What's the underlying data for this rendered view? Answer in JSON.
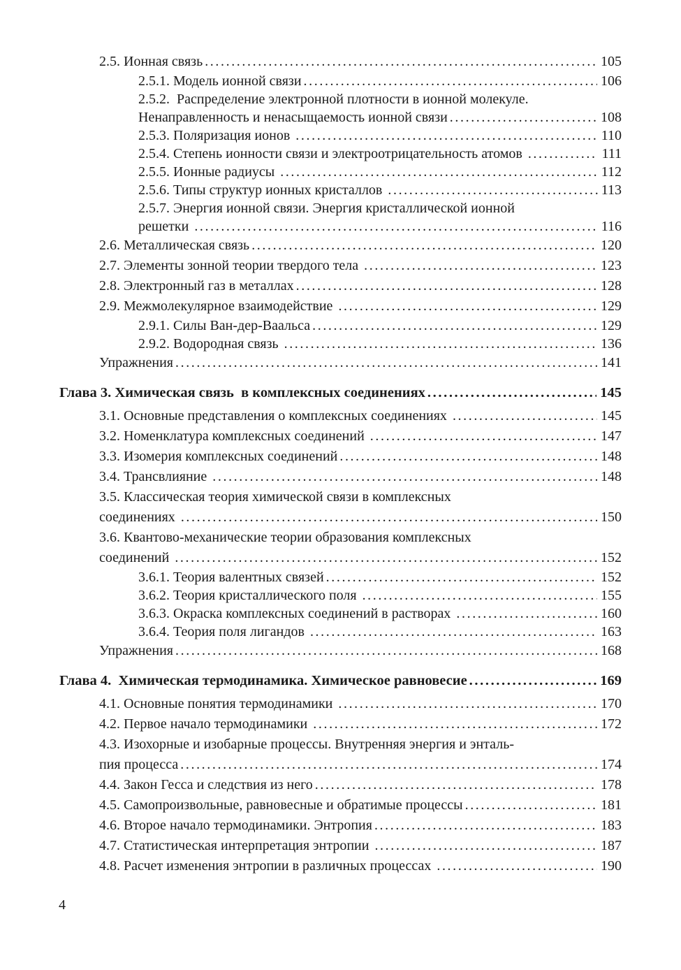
{
  "document": {
    "type": "book-table-of-contents",
    "language": "ru",
    "background_color": "#ffffff",
    "text_color": "#1b1b1b",
    "footer_page_number": "4"
  },
  "toc": {
    "entries": [
      {
        "level": 1,
        "lines": [
          "2.5. Ионная связь"
        ],
        "page": "105"
      },
      {
        "level": 2,
        "lines": [
          "2.5.1. Модель ионной связи"
        ],
        "page": "106"
      },
      {
        "level": 2,
        "lines": [
          "2.5.2.  Распределение электронной плотности в ионной молекуле.",
          "Ненаправленность и ненасыщаемость ионной связи"
        ],
        "page": "108"
      },
      {
        "level": 2,
        "lines": [
          "2.5.3. Поляризация ионов "
        ],
        "page": "110"
      },
      {
        "level": 2,
        "lines": [
          "2.5.4. Степень ионности связи и электроотрицательность атомов "
        ],
        "page": "111"
      },
      {
        "level": 2,
        "lines": [
          "2.5.5. Ионные радиусы "
        ],
        "page": "112"
      },
      {
        "level": 2,
        "lines": [
          "2.5.6. Типы структур ионных кристаллов "
        ],
        "page": "113"
      },
      {
        "level": 2,
        "lines": [
          "2.5.7. Энергия ионной связи. Энергия кристаллической ионной",
          "решетки "
        ],
        "page": "116"
      },
      {
        "level": 1,
        "lines": [
          "2.6. Металлическая связь"
        ],
        "page": "120"
      },
      {
        "level": 1,
        "lines": [
          "2.7. Элементы зонной теории твердого тела "
        ],
        "page": "123"
      },
      {
        "level": 1,
        "lines": [
          "2.8. Электронный газ в металлах"
        ],
        "page": "128"
      },
      {
        "level": 1,
        "lines": [
          "2.9. Межмолекулярное взаимодействие "
        ],
        "page": "129"
      },
      {
        "level": 2,
        "lines": [
          "2.9.1. Силы Ван-дер-Ваальса"
        ],
        "page": "129"
      },
      {
        "level": 2,
        "lines": [
          "2.9.2. Водородная связь "
        ],
        "page": "136"
      },
      {
        "level": 1,
        "lines": [
          "Упражнения"
        ],
        "page": "141"
      },
      {
        "level": 0,
        "lines": [
          "Глава 3. Химическая связь  в комплексных соединениях"
        ],
        "page": "145"
      },
      {
        "level": 1,
        "lines": [
          "3.1. Основные представления о комплексных соединениях "
        ],
        "page": "145"
      },
      {
        "level": 1,
        "lines": [
          "3.2. Номенклатура комплексных соединений "
        ],
        "page": "147"
      },
      {
        "level": 1,
        "lines": [
          "3.3. Изомерия комплексных соединений"
        ],
        "page": "148"
      },
      {
        "level": 1,
        "lines": [
          "3.4. Трансвлияние "
        ],
        "page": "148"
      },
      {
        "level": 1,
        "lines": [
          "3.5. Классическая теория химической связи в комплексных",
          "соединениях "
        ],
        "page": "150"
      },
      {
        "level": 1,
        "lines": [
          "3.6. Квантово-механические теории образования комплексных",
          "соединений "
        ],
        "page": "152"
      },
      {
        "level": 2,
        "lines": [
          "3.6.1. Теория валентных связей"
        ],
        "page": "152"
      },
      {
        "level": 2,
        "lines": [
          "3.6.2. Теория кристаллического поля "
        ],
        "page": "155"
      },
      {
        "level": 2,
        "lines": [
          "3.6.3. Окраска комплексных соединений в растворах "
        ],
        "page": "160"
      },
      {
        "level": 2,
        "lines": [
          "3.6.4. Теория поля лигандов "
        ],
        "page": "163"
      },
      {
        "level": 1,
        "lines": [
          "Упражнения"
        ],
        "page": "168"
      },
      {
        "level": 0,
        "lines": [
          "Глава 4.  Химическая термодинамика. Химическое равновесие"
        ],
        "page": "169"
      },
      {
        "level": 1,
        "lines": [
          "4.1. Основные понятия термодинамики "
        ],
        "page": "170"
      },
      {
        "level": 1,
        "lines": [
          "4.2. Первое начало термодинамики "
        ],
        "page": "172"
      },
      {
        "level": 1,
        "lines": [
          "4.3. Изохорные и изобарные процессы. Внутренняя энергия и энталь-",
          "пия процесса"
        ],
        "page": "174"
      },
      {
        "level": 1,
        "lines": [
          "4.4. Закон Гесса и следствия из него"
        ],
        "page": "178"
      },
      {
        "level": 1,
        "lines": [
          "4.5. Самопроизвольные, равновесные и обратимые процессы"
        ],
        "page": "181"
      },
      {
        "level": 1,
        "lines": [
          "4.6. Второе начало термодинамики. Энтропия"
        ],
        "page": "183"
      },
      {
        "level": 1,
        "lines": [
          "4.7. Статистическая интерпретация энтропии "
        ],
        "page": "187"
      },
      {
        "level": 1,
        "lines": [
          "4.8. Расчет изменения энтропии в различных процессах "
        ],
        "page": "190"
      }
    ]
  }
}
